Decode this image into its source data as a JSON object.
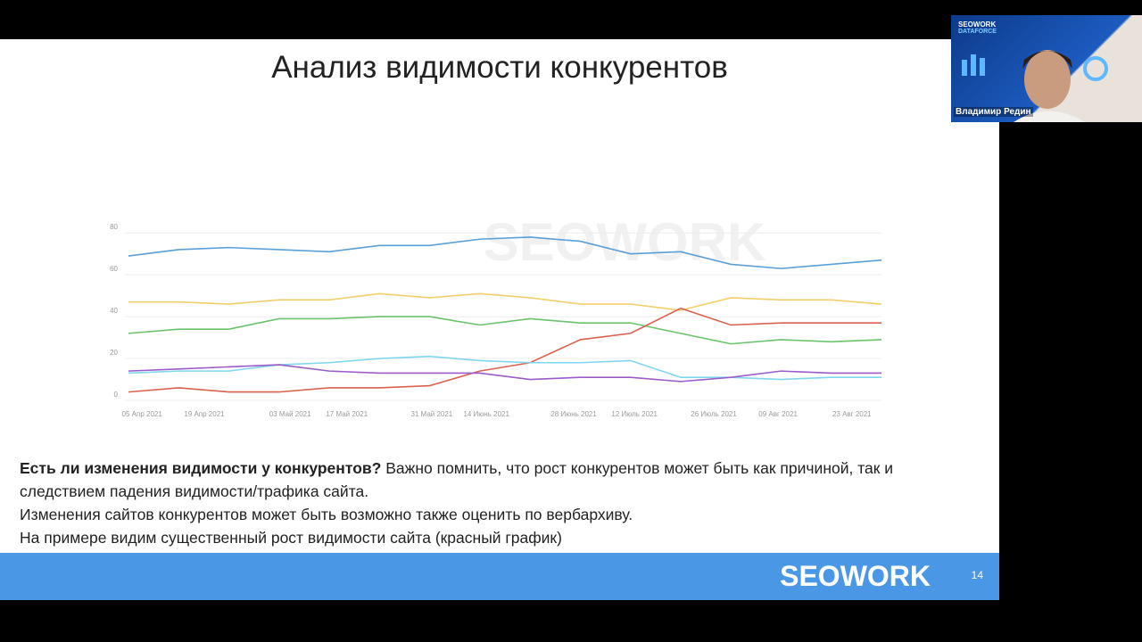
{
  "slide": {
    "title": "Анализ видимости конкурентов",
    "paragraphs": [
      {
        "bold": "Есть ли изменения видимости у конкурентов?",
        "text": "Важно помнить, что рост конкурентов может быть как причиной, так и следствием падения видимости/трафика сайта."
      },
      {
        "text": "Изменения сайтов конкурентов может быть возможно также оценить по вербархиву."
      },
      {
        "text": "На примере видим существенный рост видимости сайта (красный график)"
      }
    ],
    "footer_brand": "SEOWORK",
    "page_number": "14"
  },
  "chart_data": {
    "type": "line",
    "watermark": "SEOWORK",
    "x": [
      0,
      1,
      2,
      3,
      4,
      5,
      6,
      7,
      8,
      9,
      10,
      11,
      12,
      13,
      14,
      15
    ],
    "xlim": [
      0,
      15
    ],
    "xticks": [
      {
        "value": 0.27,
        "label": "05 Апр 2021"
      },
      {
        "value": 1.51,
        "label": "19 Апр 2021"
      },
      {
        "value": 3.22,
        "label": "03 Май 2021"
      },
      {
        "value": 4.35,
        "label": "17 Май 2021"
      },
      {
        "value": 6.04,
        "label": "31 Май 2021"
      },
      {
        "value": 7.13,
        "label": "14 Июнь 2021"
      },
      {
        "value": 8.87,
        "label": "28 Июнь 2021"
      },
      {
        "value": 10.08,
        "label": "12 Июль 2021"
      },
      {
        "value": 11.66,
        "label": "26 Июль 2021"
      },
      {
        "value": 12.94,
        "label": "09 Авг 2021"
      },
      {
        "value": 14.41,
        "label": "23 Авг 2021"
      }
    ],
    "ylim": [
      0,
      118
    ],
    "yticks": [
      0,
      20,
      40,
      60,
      80
    ],
    "grid": true,
    "series": [
      {
        "color": "#5b9fd8",
        "values": [
          69,
          72,
          73,
          72,
          71,
          74,
          74,
          77,
          78,
          76,
          70,
          71,
          65,
          63,
          65,
          67
        ]
      },
      {
        "color": "#f2cf6a",
        "values": [
          47,
          47,
          46,
          48,
          48,
          51,
          49,
          51,
          49,
          46,
          46,
          43,
          49,
          48,
          48,
          46
        ]
      },
      {
        "color": "#6cc36c",
        "values": [
          32,
          34,
          34,
          39,
          39,
          40,
          40,
          36,
          39,
          37,
          37,
          32,
          27,
          29,
          28,
          29
        ]
      },
      {
        "color": "#d9624f",
        "values": [
          4,
          6,
          4,
          4,
          6,
          6,
          7,
          14,
          18,
          29,
          32,
          44,
          36,
          37,
          37,
          37
        ]
      },
      {
        "color": "#7fd6ef",
        "values": [
          13,
          14,
          14,
          17,
          18,
          20,
          21,
          19,
          18,
          18,
          19,
          11,
          11,
          10,
          11,
          11
        ]
      },
      {
        "color": "#9b5cc9",
        "values": [
          14,
          15,
          16,
          17,
          14,
          13,
          13,
          13,
          10,
          11,
          11,
          9,
          11,
          14,
          13,
          13
        ]
      }
    ]
  },
  "webcam": {
    "brand": "SEOWORK",
    "brand_sub": "DATAFORCE",
    "name": "Владимир Редин"
  }
}
